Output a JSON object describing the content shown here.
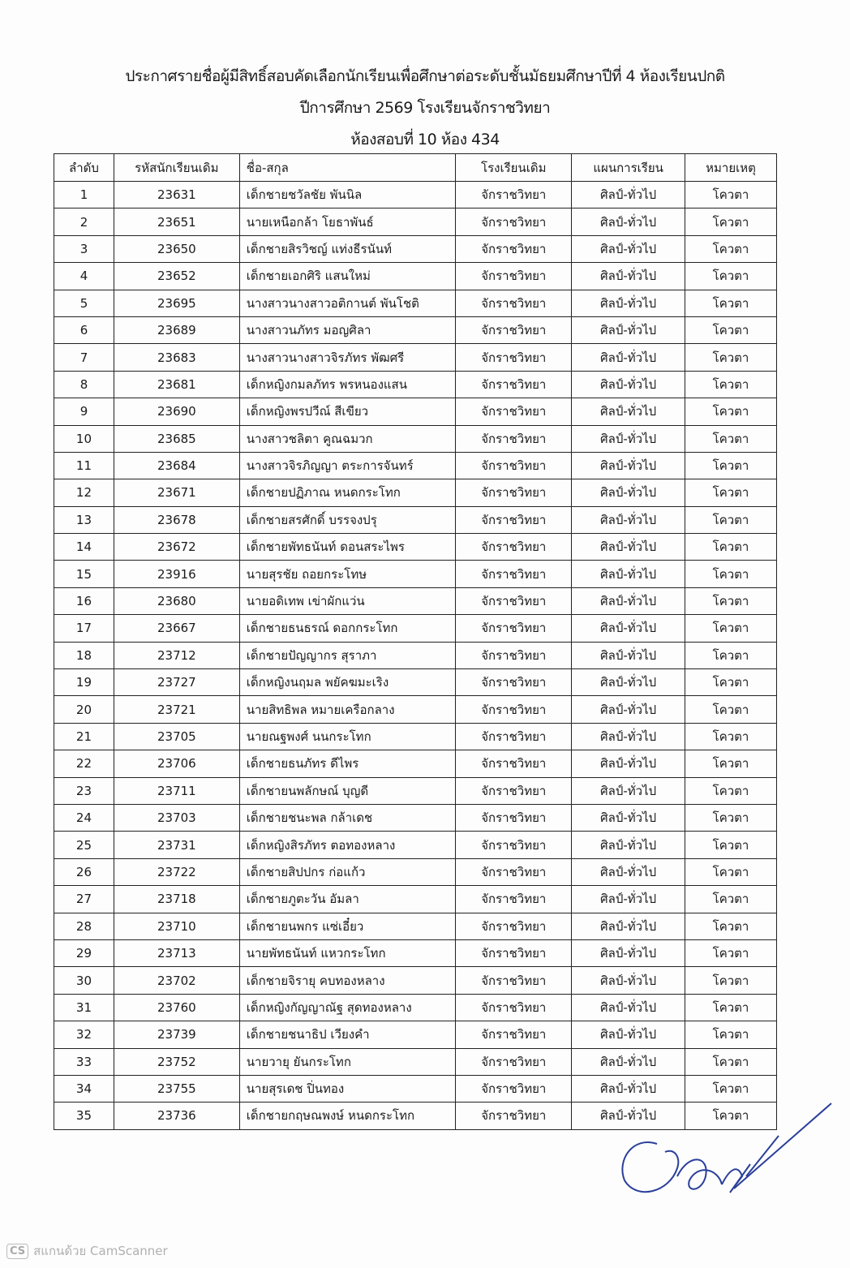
{
  "header": {
    "line1": "ประกาศรายชื่อผู้มีสิทธิ์สอบคัดเลือกนักเรียนเพื่อศึกษาต่อระดับชั้นมัธยมศึกษาปีที่ 4 ห้องเรียนปกติ",
    "line2": "ปีการศึกษา 2569 โรงเรียนจักราชวิทยา",
    "line3": "ห้องสอบที่ 10  ห้อง 434"
  },
  "table": {
    "columns": [
      "ลำดับ",
      "รหัสนักเรียนเดิม",
      "ชื่อ-สกุล",
      "โรงเรียนเดิม",
      "แผนการเรียน",
      "หมายเหตุ"
    ],
    "rows": [
      [
        "1",
        "23631",
        "เด็กชายชวัลชัย พันนิล",
        "จักราชวิทยา",
        "ศิลป์-ทั่วไป",
        "โควตา"
      ],
      [
        "2",
        "23651",
        "นายเหนือกล้า โยธาพันธ์",
        "จักราชวิทยา",
        "ศิลป์-ทั่วไป",
        "โควตา"
      ],
      [
        "3",
        "23650",
        "เด็กชายสิรวิชญ์ แท่งธีรนันท์",
        "จักราชวิทยา",
        "ศิลป์-ทั่วไป",
        "โควตา"
      ],
      [
        "4",
        "23652",
        "เด็กชายเอกศิริ แสนใหม่",
        "จักราชวิทยา",
        "ศิลป์-ทั่วไป",
        "โควตา"
      ],
      [
        "5",
        "23695",
        "นางสาวนางสาวอติกานต์ พันโชติ",
        "จักราชวิทยา",
        "ศิลป์-ทั่วไป",
        "โควตา"
      ],
      [
        "6",
        "23689",
        "นางสาวนภัทร มอญศิลา",
        "จักราชวิทยา",
        "ศิลป์-ทั่วไป",
        "โควตา"
      ],
      [
        "7",
        "23683",
        "นางสาวนางสาวจิรภัทร พัฒศรี",
        "จักราชวิทยา",
        "ศิลป์-ทั่วไป",
        "โควตา"
      ],
      [
        "8",
        "23681",
        "เด็กหญิงกมลภัทร พรหนองแสน",
        "จักราชวิทยา",
        "ศิลป์-ทั่วไป",
        "โควตา"
      ],
      [
        "9",
        "23690",
        "เด็กหญิงพรปวีณ์ สีเขียว",
        "จักราชวิทยา",
        "ศิลป์-ทั่วไป",
        "โควตา"
      ],
      [
        "10",
        "23685",
        "นางสาวชลิตา คูณฉมวก",
        "จักราชวิทยา",
        "ศิลป์-ทั่วไป",
        "โควตา"
      ],
      [
        "11",
        "23684",
        "นางสาวจิรภิญญา ตระการจันทร์",
        "จักราชวิทยา",
        "ศิลป์-ทั่วไป",
        "โควตา"
      ],
      [
        "12",
        "23671",
        "เด็กชายปฏิภาณ หนดกระโทก",
        "จักราชวิทยา",
        "ศิลป์-ทั่วไป",
        "โควตา"
      ],
      [
        "13",
        "23678",
        "เด็กชายสรศักดิ์ บรรจงปรุ",
        "จักราชวิทยา",
        "ศิลป์-ทั่วไป",
        "โควตา"
      ],
      [
        "14",
        "23672",
        "เด็กชายพัทธนันท์ ดอนสระไพร",
        "จักราชวิทยา",
        "ศิลป์-ทั่วไป",
        "โควตา"
      ],
      [
        "15",
        "23916",
        "นายสุรชัย ถอยกระโทษ",
        "จักราชวิทยา",
        "ศิลป์-ทั่วไป",
        "โควตา"
      ],
      [
        "16",
        "23680",
        "นายอดิเทพ เข่าผักแว่น",
        "จักราชวิทยา",
        "ศิลป์-ทั่วไป",
        "โควตา"
      ],
      [
        "17",
        "23667",
        "เด็กชายธนธรณ์ ดอกกระโทก",
        "จักราชวิทยา",
        "ศิลป์-ทั่วไป",
        "โควตา"
      ],
      [
        "18",
        "23712",
        "เด็กชายปัญญากร สุราภา",
        "จักราชวิทยา",
        "ศิลป์-ทั่วไป",
        "โควตา"
      ],
      [
        "19",
        "23727",
        "เด็กหญิงนฤมล พยัคฆมะเริง",
        "จักราชวิทยา",
        "ศิลป์-ทั่วไป",
        "โควตา"
      ],
      [
        "20",
        "23721",
        "นายสิทธิพล หมายเครือกลาง",
        "จักราชวิทยา",
        "ศิลป์-ทั่วไป",
        "โควตา"
      ],
      [
        "21",
        "23705",
        "นายณฐพงศ์ นนกระโทก",
        "จักราชวิทยา",
        "ศิลป์-ทั่วไป",
        "โควตา"
      ],
      [
        "22",
        "23706",
        "เด็กชายธนภัทร ดีไพร",
        "จักราชวิทยา",
        "ศิลป์-ทั่วไป",
        "โควตา"
      ],
      [
        "23",
        "23711",
        "เด็กชายนพลักษณ์ บุญดี",
        "จักราชวิทยา",
        "ศิลป์-ทั่วไป",
        "โควตา"
      ],
      [
        "24",
        "23703",
        "เด็กชายชนะพล กล้าเดช",
        "จักราชวิทยา",
        "ศิลป์-ทั่วไป",
        "โควตา"
      ],
      [
        "25",
        "23731",
        "เด็กหญิงสิรภัทร ตอทองหลาง",
        "จักราชวิทยา",
        "ศิลป์-ทั่วไป",
        "โควตา"
      ],
      [
        "26",
        "23722",
        "เด็กชายสิปปกร ก่อแก้ว",
        "จักราชวิทยา",
        "ศิลป์-ทั่วไป",
        "โควตา"
      ],
      [
        "27",
        "23718",
        "เด็กชายภูตะวัน อัมลา",
        "จักราชวิทยา",
        "ศิลป์-ทั่วไป",
        "โควตา"
      ],
      [
        "28",
        "23710",
        "เด็กชายนพกร แซ่เอี๋ยว",
        "จักราชวิทยา",
        "ศิลป์-ทั่วไป",
        "โควตา"
      ],
      [
        "29",
        "23713",
        "นายพัทธนันท์ แหวกระโทก",
        "จักราชวิทยา",
        "ศิลป์-ทั่วไป",
        "โควตา"
      ],
      [
        "30",
        "23702",
        "เด็กชายจิรายุ คบทองหลาง",
        "จักราชวิทยา",
        "ศิลป์-ทั่วไป",
        "โควตา"
      ],
      [
        "31",
        "23760",
        "เด็กหญิงกัญญาณัฐ สุดทองหลาง",
        "จักราชวิทยา",
        "ศิลป์-ทั่วไป",
        "โควตา"
      ],
      [
        "32",
        "23739",
        "เด็กชายชนาธิป เวียงคำ",
        "จักราชวิทยา",
        "ศิลป์-ทั่วไป",
        "โควตา"
      ],
      [
        "33",
        "23752",
        "นายวายุ ยันกระโทก",
        "จักราชวิทยา",
        "ศิลป์-ทั่วไป",
        "โควตา"
      ],
      [
        "34",
        "23755",
        "นายสุรเดช ปิ่นทอง",
        "จักราชวิทยา",
        "ศิลป์-ทั่วไป",
        "โควตา"
      ],
      [
        "35",
        "23736",
        "เด็กชายกฤษณพงษ์ หนดกระโทก",
        "จักราชวิทยา",
        "ศิลป์-ทั่วไป",
        "โควตา"
      ]
    ]
  },
  "signature_color": "#2a3f9a",
  "footer": {
    "badge": "CS",
    "text": "สแกนด้วย CamScanner"
  }
}
